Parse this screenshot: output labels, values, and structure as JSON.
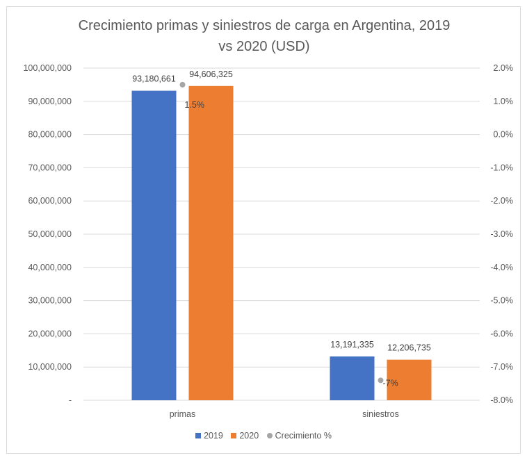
{
  "chart_data": {
    "type": "bar",
    "title_lines": [
      "Crecimiento primas y siniestros de carga en Argentina, 2019",
      "vs 2020 (USD)"
    ],
    "categories": [
      "primas",
      "siniestros"
    ],
    "series": [
      {
        "name": "2019",
        "values": [
          93180661,
          13191335
        ],
        "labels": [
          "93,180,661",
          "13,191,335"
        ],
        "color": "#4472c4"
      },
      {
        "name": "2020",
        "values": [
          94606325,
          12206735
        ],
        "labels": [
          "94,606,325",
          "12,206,735"
        ],
        "color": "#ed7d31"
      }
    ],
    "secondary_series": {
      "name": "Crecimiento %",
      "type": "scatter",
      "values": [
        1.5,
        -7.4
      ],
      "labels": [
        "1.5%",
        "-7%"
      ],
      "color": "#a5a5a5"
    },
    "ylim": [
      0,
      100000000
    ],
    "y_ticks": [
      "-",
      "10,000,000",
      "20,000,000",
      "30,000,000",
      "40,000,000",
      "50,000,000",
      "60,000,000",
      "70,000,000",
      "80,000,000",
      "90,000,000",
      "100,000,000"
    ],
    "y2lim": [
      -8.0,
      2.0
    ],
    "y2_ticks": [
      "-8.0%",
      "-7.0%",
      "-6.0%",
      "-5.0%",
      "-4.0%",
      "-3.0%",
      "-2.0%",
      "-1.0%",
      "0.0%",
      "1.0%",
      "2.0%"
    ],
    "grid": true,
    "legend_position": "bottom"
  }
}
